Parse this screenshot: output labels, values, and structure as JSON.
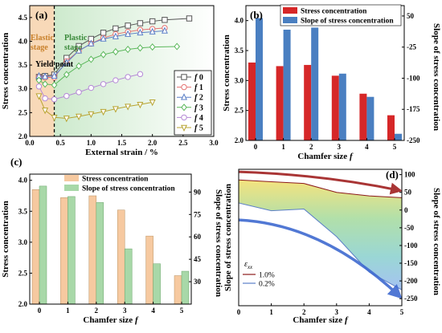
{
  "chart_data": [
    {
      "panel": "(a)",
      "type": "line",
      "xlabel": "External strain / %",
      "ylabel": "Stress concentration",
      "xlim": [
        0,
        3.0
      ],
      "ylim": [
        2.0,
        4.75
      ],
      "xticks": [
        "0.0",
        "0.5",
        "1.0",
        "1.5",
        "2.0",
        "2.5",
        "3.0"
      ],
      "yticks": [
        "2.0",
        "2.5",
        "3.0",
        "3.5",
        "4.0",
        "4.5"
      ],
      "regions": [
        {
          "label": "Elastic stage",
          "from": 0,
          "to": 0.4,
          "color": "#f8d9b8"
        },
        {
          "label": "Plastic stage",
          "from": 0.4,
          "to": 3.0,
          "color": "#d8efd8"
        }
      ],
      "annotations": [
        "Elastic",
        "stage",
        "Plastic",
        "stage",
        "Yield point"
      ],
      "yield_x": 0.4,
      "series": [
        {
          "name": "f 0",
          "color": "#555555",
          "marker": "square",
          "points": [
            [
              0.15,
              3.25
            ],
            [
              0.25,
              3.27
            ],
            [
              0.4,
              3.3
            ],
            [
              0.6,
              3.65
            ],
            [
              0.8,
              3.9
            ],
            [
              1.0,
              4.05
            ],
            [
              1.2,
              4.18
            ],
            [
              1.4,
              4.27
            ],
            [
              1.6,
              4.33
            ],
            [
              1.8,
              4.38
            ],
            [
              2.0,
              4.42
            ],
            [
              2.2,
              4.45
            ],
            [
              2.6,
              4.48
            ]
          ]
        },
        {
          "name": "f 1",
          "color": "#e57373",
          "marker": "circle",
          "points": [
            [
              0.15,
              3.25
            ],
            [
              0.25,
              3.24
            ],
            [
              0.4,
              3.24
            ],
            [
              0.6,
              3.58
            ],
            [
              0.8,
              3.8
            ],
            [
              1.0,
              3.95
            ],
            [
              1.2,
              4.07
            ],
            [
              1.4,
              4.15
            ],
            [
              1.6,
              4.2
            ],
            [
              1.8,
              4.24
            ],
            [
              2.0,
              4.26
            ],
            [
              2.2,
              4.28
            ]
          ]
        },
        {
          "name": "f 2",
          "color": "#5b7fc7",
          "marker": "triangle-up",
          "points": [
            [
              0.15,
              3.27
            ],
            [
              0.25,
              3.26
            ],
            [
              0.4,
              3.27
            ],
            [
              0.6,
              3.55
            ],
            [
              0.8,
              3.8
            ],
            [
              1.0,
              3.95
            ],
            [
              1.2,
              4.05
            ],
            [
              1.4,
              4.1
            ],
            [
              1.6,
              4.15
            ],
            [
              1.8,
              4.18
            ],
            [
              2.0,
              4.2
            ],
            [
              2.2,
              4.22
            ]
          ]
        },
        {
          "name": "f 3",
          "color": "#5cb85c",
          "marker": "diamond",
          "points": [
            [
              0.15,
              3.18
            ],
            [
              0.25,
              3.1
            ],
            [
              0.4,
              3.08
            ],
            [
              0.6,
              3.3
            ],
            [
              0.8,
              3.48
            ],
            [
              1.0,
              3.62
            ],
            [
              1.2,
              3.72
            ],
            [
              1.4,
              3.78
            ],
            [
              1.6,
              3.83
            ],
            [
              1.8,
              3.86
            ],
            [
              2.0,
              3.88
            ],
            [
              2.4,
              3.89
            ]
          ]
        },
        {
          "name": "f 4",
          "color": "#b58ad6",
          "marker": "circle",
          "points": [
            [
              0.15,
              3.05
            ],
            [
              0.25,
              2.8
            ],
            [
              0.4,
              2.78
            ],
            [
              0.6,
              2.85
            ],
            [
              0.8,
              2.93
            ],
            [
              1.0,
              3.02
            ],
            [
              1.2,
              3.1
            ],
            [
              1.4,
              3.18
            ],
            [
              1.6,
              3.25
            ],
            [
              1.8,
              3.31
            ]
          ]
        },
        {
          "name": "f 5",
          "color": "#b8a431",
          "marker": "triangle-down",
          "points": [
            [
              0.15,
              2.85
            ],
            [
              0.25,
              2.55
            ],
            [
              0.4,
              2.4
            ],
            [
              0.6,
              2.38
            ],
            [
              0.8,
              2.42
            ],
            [
              1.0,
              2.47
            ],
            [
              1.2,
              2.52
            ],
            [
              1.4,
              2.58
            ],
            [
              1.6,
              2.63
            ],
            [
              1.8,
              2.67
            ],
            [
              2.0,
              2.72
            ]
          ]
        }
      ]
    },
    {
      "panel": "(b)",
      "type": "bar",
      "xlabel": "Chamfer size f",
      "ylabel": "Stress concentration",
      "y2label": "Slope of stress concentration",
      "categories": [
        "0",
        "1",
        "2",
        "3",
        "4",
        "5"
      ],
      "ylim": [
        2.0,
        4.25
      ],
      "y2lim": [
        -250,
        75
      ],
      "yticks": [
        "2.0",
        "2.5",
        "3.0",
        "3.5",
        "4.0"
      ],
      "y2ticks": [
        "50",
        "-25",
        "-100",
        "-175",
        "-250"
      ],
      "series": [
        {
          "name": "Stress concentration",
          "axis": "left",
          "color": "#d62728",
          "values": [
            3.3,
            3.24,
            3.26,
            3.08,
            2.78,
            2.42
          ]
        },
        {
          "name": "Slope of stress concentration",
          "axis": "right",
          "color": "#4a7fc1",
          "values": [
            45,
            17,
            22,
            -89,
            -145,
            -234
          ]
        }
      ]
    },
    {
      "panel": "(c)",
      "type": "bar",
      "xlabel": "Chamfer size f",
      "ylabel": "Stress concentration",
      "y2label": "Slope of stress concentration",
      "categories": [
        "0",
        "1",
        "2",
        "3",
        "4",
        "5"
      ],
      "ylim": [
        2.0,
        4.1
      ],
      "y2lim": [
        15,
        102
      ],
      "yticks": [
        "2.0",
        "2.5",
        "3.0",
        "3.5",
        "4.0"
      ],
      "y2ticks": [
        "30",
        "45",
        "60",
        "75",
        "90"
      ],
      "series": [
        {
          "name": "Stress concentration",
          "axis": "left",
          "color": "#f6c9a0",
          "values": [
            3.85,
            3.72,
            3.75,
            3.52,
            3.1,
            2.46
          ]
        },
        {
          "name": "Slope of stress concentration",
          "axis": "right",
          "color": "#a8d8a8",
          "values": [
            94,
            87,
            83,
            52,
            42,
            37
          ]
        }
      ]
    },
    {
      "panel": "(d)",
      "type": "area",
      "xlabel": "Chamfer size f",
      "ylabel": "Slope of stress concentration",
      "xlim": [
        0,
        5
      ],
      "ylim": [
        -270,
        115
      ],
      "xticks": [
        "0",
        "1",
        "2",
        "3",
        "4",
        "5"
      ],
      "yticks": [
        "100",
        "50",
        "0",
        "-50",
        "-100",
        "-150",
        "-200",
        "-250"
      ],
      "legend_title": "ε_xx",
      "series": [
        {
          "name": "1.0%",
          "color": "#8b1a1a",
          "x": [
            0,
            1,
            2,
            3,
            4,
            5
          ],
          "values": [
            85,
            80,
            75,
            50,
            40,
            35
          ]
        },
        {
          "name": "0.2%",
          "color": "#5b7fc7",
          "x": [
            0,
            1,
            2,
            3,
            4,
            5
          ],
          "values": [
            20,
            -2,
            3,
            -75,
            -175,
            -225
          ]
        }
      ]
    }
  ]
}
